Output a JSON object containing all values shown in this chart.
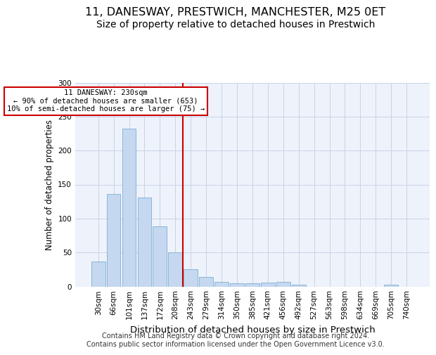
{
  "title": "11, DANESWAY, PRESTWICH, MANCHESTER, M25 0ET",
  "subtitle": "Size of property relative to detached houses in Prestwich",
  "xlabel": "Distribution of detached houses by size in Prestwich",
  "ylabel": "Number of detached properties",
  "categories": [
    "30sqm",
    "66sqm",
    "101sqm",
    "137sqm",
    "172sqm",
    "208sqm",
    "243sqm",
    "279sqm",
    "314sqm",
    "350sqm",
    "385sqm",
    "421sqm",
    "456sqm",
    "492sqm",
    "527sqm",
    "563sqm",
    "598sqm",
    "634sqm",
    "669sqm",
    "705sqm",
    "740sqm"
  ],
  "values": [
    37,
    136,
    232,
    131,
    88,
    50,
    25,
    14,
    7,
    5,
    5,
    6,
    7,
    3,
    0,
    0,
    0,
    0,
    0,
    3,
    0
  ],
  "bar_color": "#c5d8f0",
  "bar_edge_color": "#7aafd4",
  "vline_index": 6,
  "vline_color": "#cc0000",
  "annotation_text": "11 DANESWAY: 230sqm\n← 90% of detached houses are smaller (653)\n10% of semi-detached houses are larger (75) →",
  "annotation_box_color": "#cc0000",
  "ylim": [
    0,
    300
  ],
  "yticks": [
    0,
    50,
    100,
    150,
    200,
    250,
    300
  ],
  "grid_color": "#c8d4e8",
  "background_color": "#eef2fa",
  "footer_text": "Contains HM Land Registry data © Crown copyright and database right 2024.\nContains public sector information licensed under the Open Government Licence v3.0.",
  "title_fontsize": 11.5,
  "subtitle_fontsize": 10,
  "xlabel_fontsize": 9.5,
  "ylabel_fontsize": 8.5,
  "tick_fontsize": 7.5,
  "annotation_fontsize": 7.5,
  "footer_fontsize": 7
}
